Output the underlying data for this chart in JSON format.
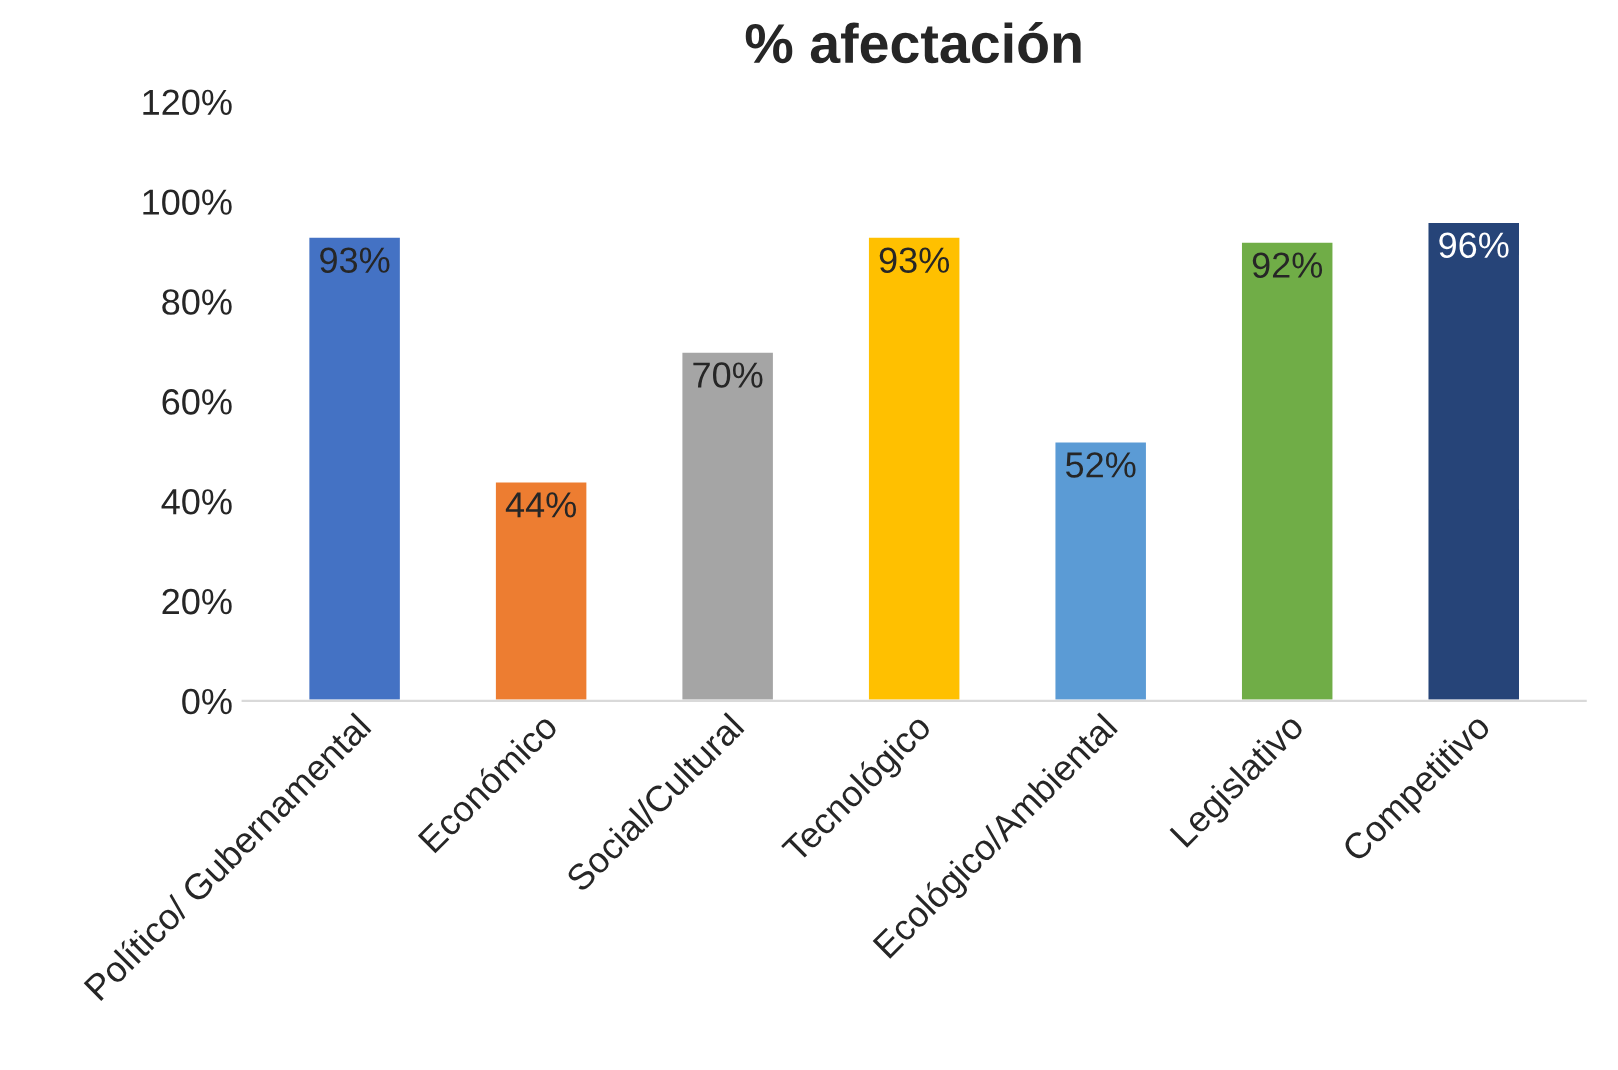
{
  "chart_data": {
    "type": "bar",
    "title": "% afectación",
    "categories": [
      "Político/ Gubernamental",
      "Económico",
      "Social/Cultural",
      "Tecnológico",
      "Ecológico/Ambiental",
      "Legislativo",
      "Competitivo"
    ],
    "values": [
      93,
      44,
      70,
      93,
      52,
      92,
      96
    ],
    "colors": [
      "#4472c4",
      "#ed7d31",
      "#a5a5a5",
      "#ffc000",
      "#5b9bd5",
      "#70ad47",
      "#264478"
    ],
    "value_labels": [
      "93%",
      "44%",
      "70%",
      "93%",
      "52%",
      "92%",
      "96%"
    ],
    "ylim": [
      0,
      120
    ],
    "yticks": [
      {
        "value": 0,
        "label": "0%"
      },
      {
        "value": 20,
        "label": "20%"
      },
      {
        "value": 40,
        "label": "40%"
      },
      {
        "value": 60,
        "label": "60%"
      },
      {
        "value": 80,
        "label": "80%"
      },
      {
        "value": 100,
        "label": "100%"
      },
      {
        "value": 120,
        "label": "120%"
      }
    ],
    "grid": false,
    "legend": false
  }
}
